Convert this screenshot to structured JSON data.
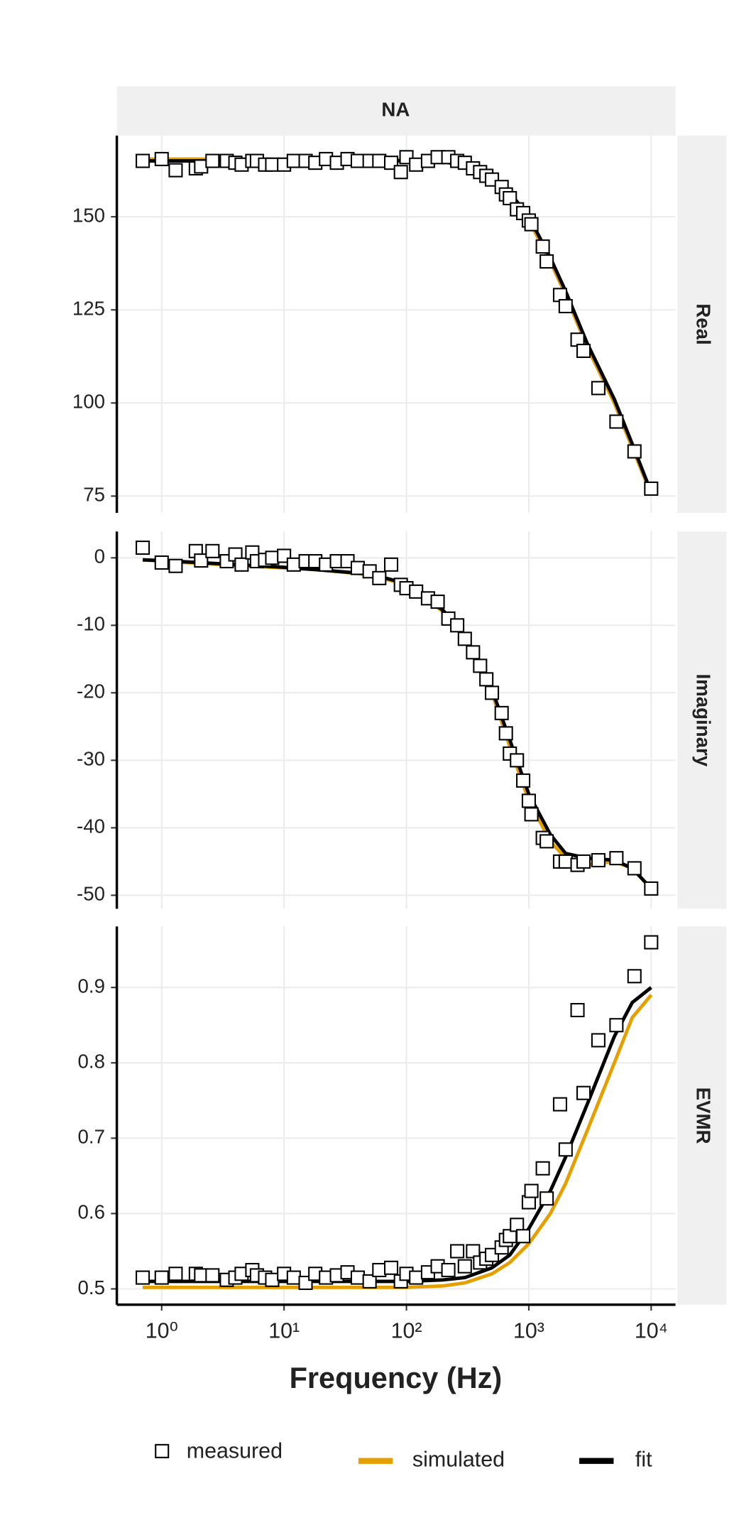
{
  "chart_data": [
    {
      "type": "line",
      "title": "NA",
      "facet": "Real",
      "log_x": true,
      "grid": true,
      "xlim": [
        0.43,
        15800
      ],
      "xticks": [
        {
          "value": 1,
          "label": "10⁰"
        },
        {
          "value": 10,
          "label": "10¹"
        },
        {
          "value": 100,
          "label": "10²"
        },
        {
          "value": 1000,
          "label": "10³"
        },
        {
          "value": 10000,
          "label": "10⁴"
        }
      ],
      "ylim": [
        70.5,
        171.8
      ],
      "yticks": [
        75,
        100,
        125,
        150
      ],
      "series": [
        {
          "name": "measured",
          "style": "markers",
          "color": "#000000",
          "x": [
            0.7,
            1,
            1.3,
            1.9,
            2.1,
            2.6,
            3.4,
            4,
            4.5,
            5.5,
            6,
            7,
            8,
            10,
            12,
            15,
            18,
            22,
            27,
            33,
            40,
            50,
            60,
            75,
            90,
            100,
            120,
            150,
            180,
            220,
            260,
            300,
            350,
            400,
            450,
            500,
            600,
            650,
            700,
            800,
            900,
            1000,
            1050,
            1300,
            1400,
            1800,
            2000,
            2500,
            2800,
            3700,
            5200,
            7300,
            10000
          ],
          "values": [
            165,
            165.5,
            162.5,
            163,
            163.5,
            165,
            165,
            164.5,
            164,
            165,
            165,
            164,
            164,
            164,
            165,
            165,
            164.5,
            165.5,
            164.5,
            165.5,
            165,
            165,
            165,
            164.5,
            162,
            166,
            164,
            165,
            166,
            166,
            165,
            164.5,
            163,
            162,
            161,
            160,
            158,
            156,
            155,
            152,
            151,
            149,
            148,
            142,
            138,
            129,
            126,
            117,
            114,
            104,
            95,
            87,
            77
          ]
        },
        {
          "name": "simulated",
          "style": "line",
          "color": "#E69F00",
          "x": [
            0.7,
            1,
            2,
            5,
            10,
            20,
            50,
            100,
            200,
            300,
            500,
            700,
            1000,
            1500,
            2000,
            3000,
            5000,
            7000,
            10000
          ],
          "values": [
            165.5,
            165.5,
            165.5,
            165.5,
            165.5,
            165.5,
            165.5,
            165.3,
            164.8,
            163.5,
            160,
            155.5,
            149,
            138,
            129,
            115,
            100,
            88,
            75.5
          ]
        },
        {
          "name": "fit",
          "style": "line",
          "color": "#000000",
          "x": [
            0.7,
            1,
            2,
            5,
            10,
            20,
            50,
            100,
            200,
            300,
            500,
            700,
            1000,
            1500,
            2000,
            3000,
            5000,
            7000,
            10000
          ],
          "values": [
            165,
            165,
            165,
            165,
            165,
            165,
            165,
            165,
            164.8,
            163.8,
            160.8,
            156.5,
            150,
            139,
            130,
            116,
            101,
            89,
            76
          ]
        }
      ]
    },
    {
      "type": "line",
      "facet": "Imaginary",
      "log_x": true,
      "grid": true,
      "xlim": [
        0.43,
        15800
      ],
      "xticks": [
        1,
        10,
        100,
        1000,
        10000
      ],
      "ylim": [
        -52,
        3.9
      ],
      "yticks": [
        -50,
        -40,
        -30,
        -20,
        -10,
        0
      ],
      "series": [
        {
          "style": "markers",
          "color": "#000000",
          "x": [
            0.7,
            1,
            1.3,
            1.9,
            2.1,
            2.6,
            3.4,
            4,
            4.5,
            5.5,
            6,
            7,
            8,
            10,
            12,
            15,
            18,
            22,
            27,
            33,
            40,
            50,
            60,
            75,
            90,
            100,
            120,
            150,
            180,
            220,
            260,
            300,
            350,
            400,
            450,
            500,
            600,
            650,
            700,
            800,
            900,
            1000,
            1050,
            1300,
            1400,
            1800,
            2000,
            2500,
            2800,
            3700,
            5200,
            7300,
            10000
          ],
          "values": [
            1.5,
            -0.7,
            -1.2,
            1,
            -0.4,
            1,
            -0.5,
            0.5,
            -1,
            0.8,
            -0.5,
            -0.3,
            0,
            0.3,
            -1,
            -0.5,
            -0.5,
            -1,
            -0.5,
            -0.5,
            -1.5,
            -2,
            -3,
            -1,
            -4,
            -4.5,
            -5,
            -6,
            -6.5,
            -9,
            -10,
            -12,
            -14,
            -16,
            -18,
            -20,
            -23,
            -26,
            -29,
            -30,
            -33,
            -36,
            -38,
            -41.5,
            -42,
            -45,
            -45,
            -45.5,
            -45,
            -44.8,
            -44.5,
            -46,
            -49
          ]
        },
        {
          "style": "line",
          "color": "#E69F00",
          "x": [
            0.7,
            1,
            2,
            5,
            10,
            20,
            50,
            100,
            200,
            300,
            500,
            700,
            1000,
            1500,
            2000,
            3000,
            5000,
            7000,
            10000
          ],
          "values": [
            -0.3,
            -0.5,
            -0.8,
            -1.2,
            -1.5,
            -1.8,
            -2.5,
            -4,
            -8,
            -12,
            -20,
            -28,
            -36,
            -42,
            -44.5,
            -45.5,
            -45,
            -46,
            -49
          ]
        },
        {
          "style": "line",
          "color": "#000000",
          "x": [
            0.7,
            1,
            2,
            5,
            10,
            20,
            50,
            100,
            200,
            300,
            500,
            700,
            1000,
            1500,
            2000,
            3000,
            5000,
            7000,
            10000
          ],
          "values": [
            -0.3,
            -0.4,
            -0.7,
            -1.1,
            -1.4,
            -1.8,
            -2.4,
            -3.8,
            -7.8,
            -11.8,
            -19.5,
            -27,
            -35,
            -41,
            -43.8,
            -44.5,
            -44.8,
            -46,
            -49
          ]
        }
      ]
    },
    {
      "type": "line",
      "facet": "EVMR",
      "xlabel": "Frequency (Hz)",
      "log_x": true,
      "grid": true,
      "xlim": [
        0.43,
        15800
      ],
      "xticks": [
        {
          "value": 1,
          "label": "10⁰"
        },
        {
          "value": 10,
          "label": "10¹"
        },
        {
          "value": 100,
          "label": "10²"
        },
        {
          "value": 1000,
          "label": "10³"
        },
        {
          "value": 10000,
          "label": "10⁴"
        }
      ],
      "ylim": [
        0.479,
        0.981
      ],
      "yticks": [
        0.5,
        0.6,
        0.7,
        0.8,
        0.9
      ],
      "series": [
        {
          "style": "markers",
          "color": "#000000",
          "x": [
            0.7,
            1,
            1.3,
            1.9,
            2.1,
            2.6,
            3.4,
            4,
            4.5,
            5.5,
            6,
            7,
            8,
            10,
            12,
            15,
            18,
            22,
            27,
            33,
            40,
            50,
            60,
            75,
            90,
            100,
            120,
            150,
            180,
            220,
            260,
            300,
            350,
            400,
            450,
            500,
            600,
            650,
            700,
            800,
            900,
            1000,
            1050,
            1300,
            1400,
            1800,
            2000,
            2500,
            2800,
            3700,
            5200,
            7300,
            10000
          ],
          "values": [
            0.515,
            0.515,
            0.52,
            0.52,
            0.518,
            0.518,
            0.512,
            0.515,
            0.52,
            0.525,
            0.518,
            0.515,
            0.512,
            0.52,
            0.515,
            0.508,
            0.52,
            0.515,
            0.518,
            0.522,
            0.515,
            0.51,
            0.525,
            0.528,
            0.51,
            0.52,
            0.515,
            0.522,
            0.53,
            0.525,
            0.55,
            0.53,
            0.55,
            0.535,
            0.54,
            0.545,
            0.555,
            0.565,
            0.57,
            0.585,
            0.57,
            0.615,
            0.63,
            0.66,
            0.62,
            0.745,
            0.685,
            0.87,
            0.76,
            0.83,
            0.85,
            0.915,
            0.96
          ]
        },
        {
          "style": "line",
          "color": "#E69F00",
          "x": [
            0.7,
            1,
            2,
            5,
            10,
            20,
            50,
            100,
            200,
            300,
            500,
            700,
            1000,
            1500,
            2000,
            3000,
            5000,
            7000,
            10000
          ],
          "values": [
            0.502,
            0.502,
            0.502,
            0.502,
            0.502,
            0.502,
            0.502,
            0.502,
            0.504,
            0.508,
            0.52,
            0.535,
            0.56,
            0.6,
            0.64,
            0.71,
            0.8,
            0.86,
            0.89
          ]
        },
        {
          "style": "line",
          "color": "#000000",
          "x": [
            0.7,
            1,
            2,
            5,
            10,
            20,
            50,
            100,
            200,
            300,
            500,
            700,
            1000,
            1500,
            2000,
            3000,
            5000,
            7000,
            10000
          ],
          "values": [
            0.51,
            0.51,
            0.51,
            0.51,
            0.51,
            0.51,
            0.51,
            0.51,
            0.512,
            0.515,
            0.528,
            0.545,
            0.58,
            0.63,
            0.675,
            0.745,
            0.835,
            0.88,
            0.9
          ]
        }
      ]
    }
  ]
}
